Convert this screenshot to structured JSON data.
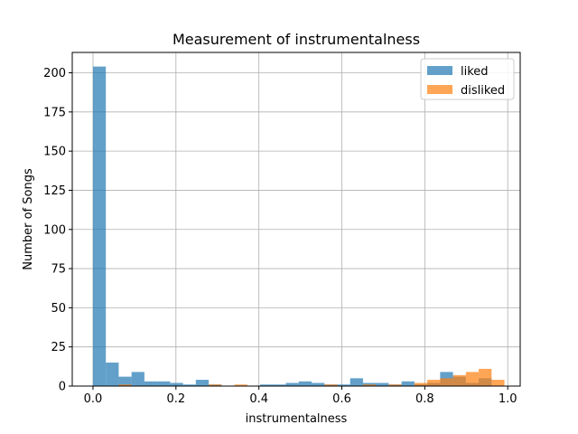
{
  "chart_data": {
    "type": "bar",
    "title": "Measurement of instrumentalness",
    "xlabel": "instrumentalness",
    "ylabel": "Number of Songs",
    "xlim": [
      -0.05,
      1.03
    ],
    "ylim": [
      0,
      213
    ],
    "x_ticks": [
      0.0,
      0.2,
      0.4,
      0.6,
      0.8,
      1.0
    ],
    "x_tick_labels": [
      "0.0",
      "0.2",
      "0.4",
      "0.6",
      "0.8",
      "1.0"
    ],
    "y_ticks": [
      0,
      25,
      50,
      75,
      100,
      125,
      150,
      175,
      200
    ],
    "y_tick_labels": [
      "0",
      "25",
      "50",
      "75",
      "100",
      "125",
      "150",
      "175",
      "200"
    ],
    "grid": true,
    "legend_position": "top-right",
    "series": [
      {
        "name": "liked",
        "color": "#1f77b4",
        "opacity": 0.7,
        "bins": [
          {
            "x0": 0.0,
            "x1": 0.031,
            "count": 204
          },
          {
            "x0": 0.031,
            "x1": 0.062,
            "count": 15
          },
          {
            "x0": 0.062,
            "x1": 0.093,
            "count": 6
          },
          {
            "x0": 0.093,
            "x1": 0.124,
            "count": 9
          },
          {
            "x0": 0.124,
            "x1": 0.155,
            "count": 3
          },
          {
            "x0": 0.155,
            "x1": 0.186,
            "count": 3
          },
          {
            "x0": 0.186,
            "x1": 0.217,
            "count": 2
          },
          {
            "x0": 0.217,
            "x1": 0.248,
            "count": 1
          },
          {
            "x0": 0.248,
            "x1": 0.279,
            "count": 4
          },
          {
            "x0": 0.279,
            "x1": 0.31,
            "count": 1
          },
          {
            "x0": 0.403,
            "x1": 0.434,
            "count": 1
          },
          {
            "x0": 0.434,
            "x1": 0.465,
            "count": 1
          },
          {
            "x0": 0.465,
            "x1": 0.496,
            "count": 2
          },
          {
            "x0": 0.496,
            "x1": 0.527,
            "count": 3
          },
          {
            "x0": 0.527,
            "x1": 0.558,
            "count": 2
          },
          {
            "x0": 0.558,
            "x1": 0.589,
            "count": 1
          },
          {
            "x0": 0.589,
            "x1": 0.62,
            "count": 1
          },
          {
            "x0": 0.62,
            "x1": 0.651,
            "count": 5
          },
          {
            "x0": 0.651,
            "x1": 0.682,
            "count": 2
          },
          {
            "x0": 0.682,
            "x1": 0.713,
            "count": 2
          },
          {
            "x0": 0.713,
            "x1": 0.744,
            "count": 1
          },
          {
            "x0": 0.744,
            "x1": 0.775,
            "count": 3
          },
          {
            "x0": 0.775,
            "x1": 0.806,
            "count": 1
          },
          {
            "x0": 0.806,
            "x1": 0.837,
            "count": 2
          },
          {
            "x0": 0.837,
            "x1": 0.868,
            "count": 9
          },
          {
            "x0": 0.868,
            "x1": 0.899,
            "count": 6
          },
          {
            "x0": 0.899,
            "x1": 0.93,
            "count": 2
          },
          {
            "x0": 0.93,
            "x1": 0.961,
            "count": 5
          }
        ]
      },
      {
        "name": "disliked",
        "color": "#ff7f0e",
        "opacity": 0.7,
        "bins": [
          {
            "x0": 0.062,
            "x1": 0.093,
            "count": 1
          },
          {
            "x0": 0.279,
            "x1": 0.31,
            "count": 1
          },
          {
            "x0": 0.341,
            "x1": 0.372,
            "count": 1
          },
          {
            "x0": 0.558,
            "x1": 0.589,
            "count": 1
          },
          {
            "x0": 0.651,
            "x1": 0.682,
            "count": 1
          },
          {
            "x0": 0.713,
            "x1": 0.744,
            "count": 1
          },
          {
            "x0": 0.775,
            "x1": 0.806,
            "count": 2
          },
          {
            "x0": 0.806,
            "x1": 0.837,
            "count": 4
          },
          {
            "x0": 0.837,
            "x1": 0.868,
            "count": 5
          },
          {
            "x0": 0.868,
            "x1": 0.899,
            "count": 7
          },
          {
            "x0": 0.899,
            "x1": 0.93,
            "count": 9
          },
          {
            "x0": 0.93,
            "x1": 0.961,
            "count": 11
          },
          {
            "x0": 0.961,
            "x1": 0.992,
            "count": 4
          }
        ]
      }
    ]
  }
}
